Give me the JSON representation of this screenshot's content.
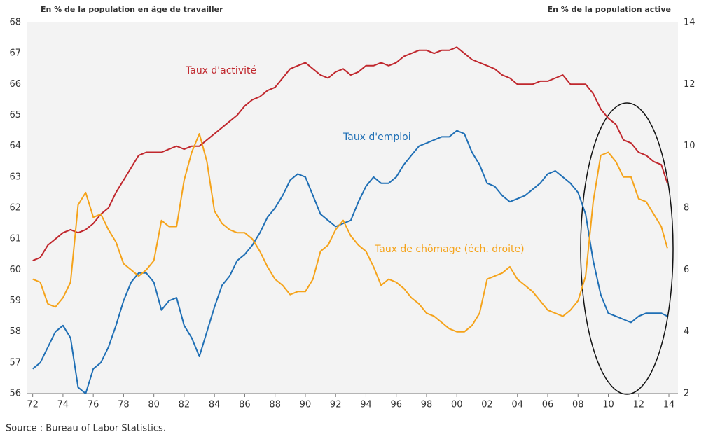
{
  "chart_data": {
    "type": "line",
    "y_label": "En % de la population en âge de travailler",
    "y2_label": "En % de la population active",
    "source": "Source : Bureau of Labor Statistics.",
    "annotations": [
      {
        "text": "Taux d'activité",
        "color": "#c0272d"
      },
      {
        "text": "Taux d'emploi",
        "color": "#1f6fb5"
      },
      {
        "text": "Taux de chômage (éch. droite)",
        "color": "#f5a31a"
      }
    ],
    "x": [
      1972,
      1972.5,
      1973,
      1973.5,
      1974,
      1974.5,
      1975,
      1975.5,
      1976,
      1976.5,
      1977,
      1977.5,
      1978,
      1978.5,
      1979,
      1979.5,
      1980,
      1980.5,
      1981,
      1981.5,
      1982,
      1982.5,
      1983,
      1983.5,
      1984,
      1984.5,
      1985,
      1985.5,
      1986,
      1986.5,
      1987,
      1987.5,
      1988,
      1988.5,
      1989,
      1989.5,
      1990,
      1990.5,
      1991,
      1991.5,
      1992,
      1992.5,
      1993,
      1993.5,
      1994,
      1994.5,
      1995,
      1995.5,
      1996,
      1996.5,
      1997,
      1997.5,
      1998,
      1998.5,
      1999,
      1999.5,
      2000,
      2000.5,
      2001,
      2001.5,
      2002,
      2002.5,
      2003,
      2003.5,
      2004,
      2004.5,
      2005,
      2005.5,
      2006,
      2006.5,
      2007,
      2007.5,
      2008,
      2008.5,
      2009,
      2009.5,
      2010,
      2010.5,
      2011,
      2011.5,
      2012,
      2012.5,
      2013,
      2013.5,
      2013.9
    ],
    "series": [
      {
        "name": "Taux d'activité",
        "color": "#c0272d",
        "values": [
          60.3,
          60.4,
          60.8,
          61.0,
          61.2,
          61.3,
          61.2,
          61.3,
          61.5,
          61.8,
          62.0,
          62.5,
          62.9,
          63.3,
          63.7,
          63.8,
          63.8,
          63.8,
          63.9,
          64.0,
          63.9,
          64.0,
          64.0,
          64.2,
          64.4,
          64.6,
          64.8,
          65.0,
          65.3,
          65.5,
          65.6,
          65.8,
          65.9,
          66.2,
          66.5,
          66.6,
          66.7,
          66.5,
          66.3,
          66.2,
          66.4,
          66.5,
          66.3,
          66.4,
          66.6,
          66.6,
          66.7,
          66.6,
          66.7,
          66.9,
          67.0,
          67.1,
          67.1,
          67.0,
          67.1,
          67.1,
          67.2,
          67.0,
          66.8,
          66.7,
          66.6,
          66.5,
          66.3,
          66.2,
          66.0,
          66.0,
          66.0,
          66.1,
          66.1,
          66.2,
          66.3,
          66.0,
          66.0,
          66.0,
          65.7,
          65.2,
          64.9,
          64.7,
          64.2,
          64.1,
          63.8,
          63.7,
          63.5,
          63.4,
          62.8
        ]
      },
      {
        "name": "Taux d'emploi",
        "color": "#1f6fb5",
        "values": [
          56.8,
          57.0,
          57.5,
          58.0,
          58.2,
          57.8,
          56.2,
          56.0,
          56.8,
          57.0,
          57.5,
          58.2,
          59.0,
          59.6,
          59.9,
          59.9,
          59.6,
          58.7,
          59.0,
          59.1,
          58.2,
          57.8,
          57.2,
          58.0,
          58.8,
          59.5,
          59.8,
          60.3,
          60.5,
          60.8,
          61.2,
          61.7,
          62.0,
          62.4,
          62.9,
          63.1,
          63.0,
          62.4,
          61.8,
          61.6,
          61.4,
          61.5,
          61.6,
          62.2,
          62.7,
          63.0,
          62.8,
          62.8,
          63.0,
          63.4,
          63.7,
          64.0,
          64.1,
          64.2,
          64.3,
          64.3,
          64.5,
          64.4,
          63.8,
          63.4,
          62.8,
          62.7,
          62.4,
          62.2,
          62.3,
          62.4,
          62.6,
          62.8,
          63.1,
          63.2,
          63.0,
          62.8,
          62.5,
          61.8,
          60.3,
          59.2,
          58.6,
          58.5,
          58.4,
          58.3,
          58.5,
          58.6,
          58.6,
          58.6,
          58.5
        ]
      },
      {
        "name": "Taux de chômage (éch. droite)",
        "color": "#f5a31a",
        "axis": "y2",
        "values": [
          5.7,
          5.6,
          4.9,
          4.8,
          5.1,
          5.6,
          8.1,
          8.5,
          7.7,
          7.8,
          7.3,
          6.9,
          6.2,
          6.0,
          5.8,
          6.0,
          6.3,
          7.6,
          7.4,
          7.4,
          8.9,
          9.8,
          10.4,
          9.5,
          7.9,
          7.5,
          7.3,
          7.2,
          7.2,
          7.0,
          6.6,
          6.1,
          5.7,
          5.5,
          5.2,
          5.3,
          5.3,
          5.7,
          6.6,
          6.8,
          7.3,
          7.6,
          7.1,
          6.8,
          6.6,
          6.1,
          5.5,
          5.7,
          5.6,
          5.4,
          5.1,
          4.9,
          4.6,
          4.5,
          4.3,
          4.1,
          4.0,
          4.0,
          4.2,
          4.6,
          5.7,
          5.8,
          5.9,
          6.1,
          5.7,
          5.5,
          5.3,
          5.0,
          4.7,
          4.6,
          4.5,
          4.7,
          5.0,
          5.8,
          8.2,
          9.7,
          9.8,
          9.5,
          9.0,
          9.0,
          8.3,
          8.2,
          7.8,
          7.4,
          6.7
        ]
      }
    ],
    "xlim": [
      1971.6,
      2014.6
    ],
    "xticks": [
      {
        "value": 1972,
        "label": "72"
      },
      {
        "value": 1974,
        "label": "74"
      },
      {
        "value": 1976,
        "label": "76"
      },
      {
        "value": 1978,
        "label": "78"
      },
      {
        "value": 1980,
        "label": "80"
      },
      {
        "value": 1982,
        "label": "82"
      },
      {
        "value": 1984,
        "label": "84"
      },
      {
        "value": 1986,
        "label": "86"
      },
      {
        "value": 1988,
        "label": "88"
      },
      {
        "value": 1990,
        "label": "90"
      },
      {
        "value": 1992,
        "label": "92"
      },
      {
        "value": 1994,
        "label": "94"
      },
      {
        "value": 1996,
        "label": "96"
      },
      {
        "value": 1998,
        "label": "98"
      },
      {
        "value": 2000,
        "label": "00"
      },
      {
        "value": 2002,
        "label": "02"
      },
      {
        "value": 2004,
        "label": "04"
      },
      {
        "value": 2006,
        "label": "06"
      },
      {
        "value": 2008,
        "label": "08"
      },
      {
        "value": 2010,
        "label": "10"
      },
      {
        "value": 2012,
        "label": "12"
      },
      {
        "value": 2014,
        "label": "14"
      }
    ],
    "ylim": [
      56,
      68
    ],
    "yticks": [
      56,
      57,
      58,
      59,
      60,
      61,
      62,
      63,
      64,
      65,
      66,
      67,
      68
    ],
    "y2lim": [
      2,
      14
    ],
    "y2ticks": [
      2,
      4,
      6,
      8,
      10,
      12,
      14
    ]
  }
}
